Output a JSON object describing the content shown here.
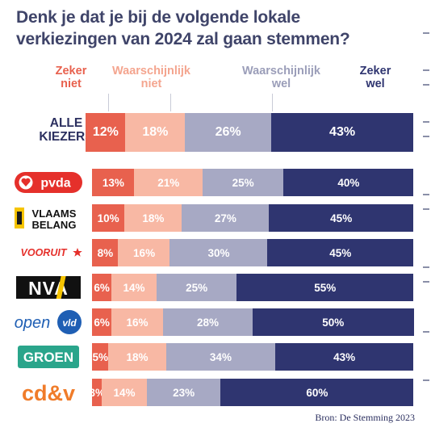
{
  "colors": {
    "zeker_niet": "#e8614e",
    "waarschijnlijk_niet": "#f8b8a4",
    "waarschijnlijk_wel": "#a7a9c4",
    "zeker_wel": "#2f3570"
  },
  "title_line1": "Denk je dat je bij de volgende lokale",
  "title_line2": "verkiezingen van 2024 zal gaan stemmen?",
  "legend": [
    {
      "line1": "Zeker",
      "line2": "niet",
      "color": "#e8614e"
    },
    {
      "line1": "Waarschijnlijk",
      "line2": "niet",
      "color": "#f4a58f"
    },
    {
      "line1": "Waarschijnlijk",
      "line2": "wel",
      "color": "#9b9eb9"
    },
    {
      "line1": "Zeker",
      "line2": "wel",
      "color": "#2f3570"
    }
  ],
  "row_label_all": {
    "line1": "ALLE",
    "line2": "KIEZERS"
  },
  "logos": {
    "pvda": "pvda",
    "vb_line1": "VLAAMS",
    "vb_line2": "BELANG",
    "vooruit": "VOORUIT",
    "nva": "NVA",
    "open": "open",
    "vld": "vld",
    "groen": "GROEN",
    "cdv": "cd&v"
  },
  "chart_data": {
    "type": "bar",
    "stacked": true,
    "orientation": "horizontal",
    "title": "Denk je dat je bij de volgende lokale verkiezingen van 2024 zal gaan stemmen?",
    "categories": [
      "ALLE KIEZERS",
      "pvda",
      "VLAAMS BELANG",
      "VOORUIT",
      "NVA",
      "open vld",
      "GROEN",
      "cd&v"
    ],
    "series": [
      {
        "name": "Zeker niet",
        "color": "#e8614e",
        "values": [
          12,
          13,
          10,
          8,
          6,
          6,
          5,
          3
        ],
        "labels": [
          "12%",
          "13%",
          "10%",
          "8%",
          "6%",
          "6%",
          "5%",
          "3%"
        ]
      },
      {
        "name": "Waarschijnlijk niet",
        "color": "#f8b8a4",
        "values": [
          18,
          21,
          18,
          16,
          14,
          16,
          18,
          14
        ],
        "labels": [
          "18%",
          "21%",
          "18%",
          "16%",
          "14%",
          "16%",
          "18%",
          "14%"
        ]
      },
      {
        "name": "Waarschijnlijk wel",
        "color": "#a7a9c4",
        "values": [
          26,
          25,
          27,
          30,
          25,
          28,
          34,
          23
        ],
        "labels": [
          "26%",
          "25%",
          "27%",
          "30%",
          "25%",
          "28%",
          "34%",
          "23%"
        ]
      },
      {
        "name": "Zeker wel",
        "color": "#2f3570",
        "values": [
          43,
          40,
          45,
          45,
          55,
          50,
          43,
          60
        ],
        "labels": [
          "43%",
          "40%",
          "45%",
          "45%",
          "55%",
          "50%",
          "43%",
          "60%"
        ]
      }
    ],
    "legend_position": "top"
  },
  "source": "Bron: De Stemming 2023"
}
